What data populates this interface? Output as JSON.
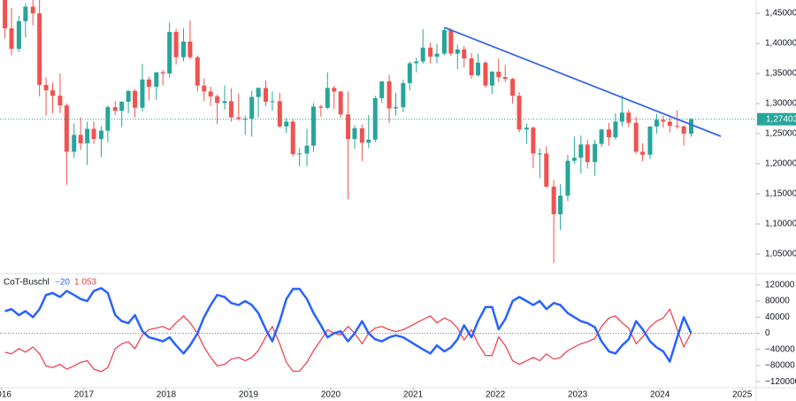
{
  "chart_data": [
    {
      "type": "candlestick",
      "up_color": "#26a69a",
      "down_color": "#ef5350",
      "x": [
        2016.04,
        2016.12,
        2016.21,
        2016.29,
        2016.38,
        2016.46,
        2016.54,
        2016.62,
        2016.71,
        2016.79,
        2016.88,
        2016.96,
        2017.04,
        2017.12,
        2017.21,
        2017.29,
        2017.38,
        2017.46,
        2017.54,
        2017.62,
        2017.71,
        2017.79,
        2017.88,
        2017.96,
        2018.04,
        2018.12,
        2018.21,
        2018.29,
        2018.38,
        2018.46,
        2018.54,
        2018.62,
        2018.71,
        2018.79,
        2018.88,
        2018.96,
        2019.04,
        2019.12,
        2019.21,
        2019.29,
        2019.38,
        2019.46,
        2019.54,
        2019.62,
        2019.71,
        2019.79,
        2019.88,
        2019.96,
        2020.04,
        2020.12,
        2020.21,
        2020.29,
        2020.38,
        2020.46,
        2020.54,
        2020.62,
        2020.71,
        2020.79,
        2020.88,
        2020.96,
        2021.04,
        2021.12,
        2021.21,
        2021.29,
        2021.38,
        2021.46,
        2021.54,
        2021.62,
        2021.71,
        2021.79,
        2021.88,
        2021.96,
        2022.04,
        2022.12,
        2022.21,
        2022.29,
        2022.38,
        2022.46,
        2022.54,
        2022.62,
        2022.71,
        2022.79,
        2022.88,
        2022.96,
        2023.04,
        2023.12,
        2023.21,
        2023.29,
        2023.38,
        2023.46,
        2023.54,
        2023.62,
        2023.71,
        2023.79,
        2023.88,
        2023.96,
        2024.04,
        2024.12,
        2024.21,
        2024.29,
        2024.38
      ],
      "open": [
        1.474,
        1.425,
        1.391,
        1.437,
        1.461,
        1.45,
        1.331,
        1.322,
        1.313,
        1.297,
        1.22,
        1.248,
        1.234,
        1.258,
        1.241,
        1.255,
        1.294,
        1.288,
        1.303,
        1.321,
        1.293,
        1.34,
        1.328,
        1.352,
        1.35,
        1.419,
        1.377,
        1.403,
        1.377,
        1.33,
        1.32,
        1.312,
        1.301,
        1.304,
        1.277,
        1.275,
        1.275,
        1.311,
        1.326,
        1.303,
        1.304,
        1.262,
        1.27,
        1.216,
        1.217,
        1.23,
        1.295,
        1.293,
        1.326,
        1.32,
        1.282,
        1.241,
        1.259,
        1.235,
        1.24,
        1.309,
        1.337,
        1.292,
        1.294,
        1.334,
        1.367,
        1.37,
        1.393,
        1.378,
        1.383,
        1.422,
        1.383,
        1.39,
        1.375,
        1.347,
        1.368,
        1.33,
        1.353,
        1.344,
        1.341,
        1.313,
        1.257,
        1.26,
        1.217,
        1.217,
        1.162,
        1.116,
        1.147,
        1.205,
        1.21,
        1.232,
        1.203,
        1.233,
        1.257,
        1.244,
        1.27,
        1.285,
        1.268,
        1.22,
        1.215,
        1.262,
        1.273,
        1.27,
        1.263,
        1.262,
        1.25
      ],
      "high": [
        1.482,
        1.459,
        1.446,
        1.466,
        1.477,
        1.501,
        1.343,
        1.335,
        1.35,
        1.3,
        1.267,
        1.277,
        1.27,
        1.27,
        1.262,
        1.297,
        1.304,
        1.304,
        1.322,
        1.324,
        1.366,
        1.345,
        1.352,
        1.356,
        1.435,
        1.424,
        1.425,
        1.438,
        1.38,
        1.342,
        1.328,
        1.315,
        1.33,
        1.325,
        1.317,
        1.28,
        1.321,
        1.327,
        1.338,
        1.32,
        1.318,
        1.276,
        1.274,
        1.226,
        1.258,
        1.301,
        1.298,
        1.352,
        1.33,
        1.321,
        1.32,
        1.264,
        1.265,
        1.281,
        1.313,
        1.337,
        1.348,
        1.318,
        1.34,
        1.37,
        1.376,
        1.424,
        1.401,
        1.399,
        1.425,
        1.425,
        1.398,
        1.396,
        1.384,
        1.383,
        1.371,
        1.354,
        1.375,
        1.364,
        1.343,
        1.319,
        1.267,
        1.262,
        1.225,
        1.229,
        1.173,
        1.166,
        1.215,
        1.245,
        1.247,
        1.24,
        1.24,
        1.258,
        1.268,
        1.284,
        1.314,
        1.29,
        1.278,
        1.234,
        1.262,
        1.283,
        1.28,
        1.277,
        1.289,
        1.264,
        1.276
      ],
      "low": [
        1.408,
        1.38,
        1.386,
        1.41,
        1.43,
        1.312,
        1.28,
        1.284,
        1.284,
        1.165,
        1.21,
        1.223,
        1.198,
        1.233,
        1.211,
        1.236,
        1.281,
        1.261,
        1.284,
        1.277,
        1.287,
        1.305,
        1.306,
        1.33,
        1.343,
        1.365,
        1.37,
        1.374,
        1.32,
        1.304,
        1.296,
        1.266,
        1.29,
        1.27,
        1.272,
        1.248,
        1.245,
        1.277,
        1.296,
        1.288,
        1.26,
        1.251,
        1.212,
        1.196,
        1.196,
        1.22,
        1.278,
        1.291,
        1.291,
        1.276,
        1.141,
        1.225,
        1.204,
        1.226,
        1.236,
        1.301,
        1.268,
        1.28,
        1.286,
        1.322,
        1.352,
        1.366,
        1.367,
        1.367,
        1.38,
        1.379,
        1.357,
        1.36,
        1.341,
        1.345,
        1.326,
        1.316,
        1.336,
        1.336,
        1.3,
        1.252,
        1.233,
        1.193,
        1.176,
        1.16,
        1.035,
        1.09,
        1.138,
        1.2,
        1.184,
        1.192,
        1.18,
        1.228,
        1.23,
        1.24,
        1.262,
        1.261,
        1.217,
        1.204,
        1.208,
        1.25,
        1.26,
        1.252,
        1.258,
        1.23,
        1.245
      ],
      "close": [
        1.425,
        1.391,
        1.437,
        1.461,
        1.45,
        1.331,
        1.322,
        1.313,
        1.297,
        1.22,
        1.248,
        1.234,
        1.258,
        1.241,
        1.255,
        1.294,
        1.288,
        1.303,
        1.321,
        1.293,
        1.34,
        1.328,
        1.352,
        1.35,
        1.419,
        1.377,
        1.403,
        1.377,
        1.33,
        1.32,
        1.312,
        1.301,
        1.304,
        1.277,
        1.275,
        1.275,
        1.311,
        1.326,
        1.303,
        1.304,
        1.262,
        1.27,
        1.216,
        1.217,
        1.23,
        1.295,
        1.293,
        1.326,
        1.32,
        1.282,
        1.241,
        1.259,
        1.235,
        1.24,
        1.309,
        1.337,
        1.292,
        1.294,
        1.334,
        1.367,
        1.37,
        1.393,
        1.378,
        1.383,
        1.422,
        1.383,
        1.39,
        1.375,
        1.347,
        1.368,
        1.33,
        1.353,
        1.344,
        1.341,
        1.313,
        1.257,
        1.26,
        1.217,
        1.217,
        1.162,
        1.116,
        1.147,
        1.205,
        1.21,
        1.232,
        1.203,
        1.233,
        1.257,
        1.244,
        1.27,
        1.285,
        1.268,
        1.22,
        1.215,
        1.262,
        1.273,
        1.27,
        1.263,
        1.262,
        1.25,
        1.274
      ],
      "xlim": [
        2015.98,
        2025.17
      ],
      "xticks": [
        2016,
        2017,
        2018,
        2019,
        2020,
        2021,
        2022,
        2023,
        2024,
        2025
      ],
      "ylim": [
        1.0191,
        1.4721
      ],
      "yticks": [
        {
          "value": 1.05,
          "label": "1,05000"
        },
        {
          "value": 1.1,
          "label": "1,10000"
        },
        {
          "value": 1.15,
          "label": "1,15000"
        },
        {
          "value": 1.2,
          "label": "1,20000"
        },
        {
          "value": 1.25,
          "label": "1,25000"
        },
        {
          "value": 1.3,
          "label": "1,30000"
        },
        {
          "value": 1.35,
          "label": "1,35000"
        },
        {
          "value": 1.4,
          "label": "1,40000"
        },
        {
          "value": 1.45,
          "label": "1,45000"
        }
      ],
      "last_price": {
        "value": 1.27403,
        "label": "1,27403"
      },
      "trendline": {
        "color": "#3366e6",
        "x": [
          2021.38,
          2024.74
        ],
        "y": [
          1.4265,
          1.2456
        ]
      },
      "grid": false
    },
    {
      "type": "line",
      "title": "CoT-Buschl",
      "series": [
        {
          "name": "blue",
          "color": "#2962ff",
          "value_labels": {
            "100": "−20"
          },
          "values": [
            55000,
            60000,
            45000,
            55000,
            40000,
            60000,
            95000,
            100000,
            90000,
            105000,
            95000,
            85000,
            80000,
            105000,
            112000,
            100000,
            45000,
            30000,
            25000,
            45000,
            5000,
            -10000,
            -15000,
            -20000,
            -10000,
            -30000,
            -50000,
            -30000,
            0,
            40000,
            70000,
            95000,
            90000,
            75000,
            70000,
            80000,
            70000,
            50000,
            10000,
            -20000,
            30000,
            85000,
            110000,
            110000,
            85000,
            50000,
            20000,
            -10000,
            0,
            5000,
            -20000,
            0,
            30000,
            0,
            -15000,
            -20000,
            -10000,
            -5000,
            -10000,
            -20000,
            -30000,
            -40000,
            -50000,
            -30000,
            -45000,
            -35000,
            -15000,
            20000,
            -10000,
            30000,
            65000,
            65000,
            10000,
            35000,
            80000,
            90000,
            80000,
            70000,
            80000,
            60000,
            75000,
            70000,
            50000,
            40000,
            30000,
            25000,
            15000,
            -20000,
            -45000,
            -50000,
            -30000,
            -15000,
            30000,
            10000,
            -20000,
            -35000,
            -45000,
            -70000,
            -10000,
            40000,
            -20
          ]
        },
        {
          "name": "red",
          "color": "#f23645",
          "value_labels": {
            "100": "1 053"
          },
          "values": [
            -47000,
            -51000,
            -38000,
            -47000,
            -34000,
            -51000,
            -81000,
            -85000,
            -77000,
            -89000,
            -81000,
            -72000,
            -68000,
            -89000,
            -95000,
            -85000,
            -38000,
            -26000,
            -21000,
            -38000,
            -4000,
            9000,
            13000,
            17000,
            9000,
            26000,
            43000,
            26000,
            0,
            -34000,
            -60000,
            -81000,
            -77000,
            -64000,
            -60000,
            -68000,
            -60000,
            -43000,
            -9000,
            17000,
            -26000,
            -72000,
            -94000,
            -94000,
            -72000,
            -43000,
            -17000,
            9000,
            0,
            -4000,
            17000,
            0,
            -26000,
            0,
            13000,
            17000,
            9000,
            4000,
            9000,
            17000,
            26000,
            34000,
            43000,
            26000,
            38000,
            30000,
            13000,
            -17000,
            9000,
            -26000,
            -55000,
            -55000,
            -9000,
            -30000,
            -68000,
            -77000,
            -68000,
            -60000,
            -68000,
            -51000,
            -64000,
            -60000,
            -43000,
            -34000,
            -26000,
            -21000,
            -13000,
            17000,
            38000,
            43000,
            26000,
            13000,
            -26000,
            -9000,
            17000,
            30000,
            38000,
            60000,
            9000,
            -34000,
            1053
          ]
        }
      ],
      "ylim": [
        -135000,
        146000
      ],
      "yticks": [
        {
          "value": -120000,
          "label": "−120000"
        },
        {
          "value": -80000,
          "label": "−80000"
        },
        {
          "value": -40000,
          "label": "−40000"
        },
        0,
        40000,
        80000,
        120000
      ]
    }
  ]
}
